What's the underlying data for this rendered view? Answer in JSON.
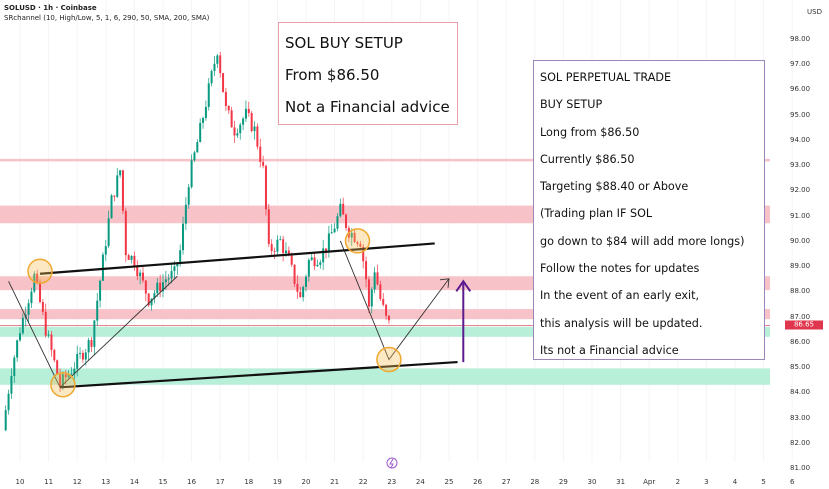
{
  "header": {
    "symbol_line": "SOLUSD · 1h · Coinbase",
    "indicator_line": "SRchannel (10, High/Low, 5, 1, 6, 290, 50, SMA, 200, SMA)"
  },
  "setup_box": {
    "lines": [
      "SOL BUY SETUP",
      "From $86.50",
      "Not a Financial advice"
    ]
  },
  "notes_box": {
    "lines": [
      "SOL PERPETUAL TRADE",
      "BUY SETUP",
      "Long from $86.50",
      "Currently $86.50",
      "Targeting $88.40 or Above",
      "(Trading plan IF SOL",
      "go down to $84 will add more longs)",
      "Follow the notes for updates",
      "In the event of an early exit,",
      "this analysis will be updated.",
      "Its not a Financial advice"
    ]
  },
  "colors": {
    "up": "#089981",
    "down": "#f23645",
    "resistance": "#f7c3c8",
    "support": "#b8efd9",
    "price_tag": "#e0364d",
    "arrow": "#5b1b8f",
    "circle": "#f0a830"
  },
  "icons": {
    "event_marker": "lightning-icon"
  },
  "chart_data": {
    "type": "candlestick",
    "currency_label": "USD",
    "current_price": "86.65",
    "ylim": [
      81,
      98
    ],
    "y_ticks": [
      "98.00",
      "97.00",
      "96.00",
      "95.00",
      "94.00",
      "93.00",
      "92.00",
      "91.00",
      "90.00",
      "89.00",
      "88.00",
      "87.00",
      "86.00",
      "85.00",
      "84.00",
      "83.00",
      "82.00",
      "81.00"
    ],
    "x_ticks": [
      "10",
      "11",
      "12",
      "13",
      "14",
      "15",
      "16",
      "17",
      "18",
      "19",
      "20",
      "21",
      "22",
      "23",
      "24",
      "25",
      "26",
      "27",
      "28",
      "29",
      "30",
      "31",
      "Apr",
      "2",
      "3",
      "4",
      "5",
      "6"
    ],
    "price_path": [
      [
        9.4,
        82.5
      ],
      [
        9.7,
        84.9
      ],
      [
        10.0,
        86.5
      ],
      [
        10.5,
        88.6
      ],
      [
        10.9,
        86.5
      ],
      [
        11.4,
        84.3
      ],
      [
        11.8,
        84.9
      ],
      [
        12.5,
        86.1
      ],
      [
        13.0,
        90.0
      ],
      [
        13.2,
        91.6
      ],
      [
        13.5,
        92.8
      ],
      [
        13.7,
        89.6
      ],
      [
        14.0,
        89.2
      ],
      [
        14.5,
        87.7
      ],
      [
        15.1,
        88.5
      ],
      [
        15.4,
        88.7
      ],
      [
        15.6,
        89.6
      ],
      [
        15.9,
        92.4
      ],
      [
        16.3,
        94.4
      ],
      [
        16.6,
        96.0
      ],
      [
        16.9,
        97.6
      ],
      [
        17.2,
        95.2
      ],
      [
        17.5,
        94.4
      ],
      [
        17.9,
        95.0
      ],
      [
        18.2,
        94.4
      ],
      [
        18.5,
        92.8
      ],
      [
        18.6,
        91.2
      ],
      [
        18.7,
        89.6
      ],
      [
        19.1,
        90.0
      ],
      [
        19.4,
        89.2
      ],
      [
        19.8,
        87.7
      ],
      [
        20.1,
        89.2
      ],
      [
        20.5,
        89.4
      ],
      [
        20.8,
        90.0
      ],
      [
        21.2,
        91.2
      ],
      [
        21.5,
        90.4
      ],
      [
        21.9,
        90.0
      ],
      [
        22.1,
        88.5
      ],
      [
        22.2,
        87.3
      ],
      [
        22.4,
        88.9
      ],
      [
        22.6,
        87.7
      ],
      [
        22.8,
        86.9
      ],
      [
        22.9,
        86.7
      ]
    ],
    "zones": [
      {
        "kind": "resistance",
        "from": 93.15,
        "to": 93.25
      },
      {
        "kind": "resistance",
        "from": 90.7,
        "to": 91.4
      },
      {
        "kind": "resistance",
        "from": 88.05,
        "to": 88.6
      },
      {
        "kind": "resistance",
        "from": 86.9,
        "to": 87.3
      },
      {
        "kind": "support",
        "from": 86.2,
        "to": 86.6
      },
      {
        "kind": "support",
        "from": 84.3,
        "to": 84.95
      }
    ],
    "trendlines": [
      {
        "name": "upper-channel",
        "points": [
          [
            10.7,
            88.7
          ],
          [
            24.5,
            89.9
          ]
        ]
      },
      {
        "name": "lower-channel",
        "points": [
          [
            11.4,
            84.2
          ],
          [
            25.3,
            85.2
          ]
        ]
      }
    ],
    "pivots": [
      [
        10.7,
        88.8
      ],
      [
        11.5,
        84.3
      ],
      [
        21.8,
        90.0
      ],
      [
        22.9,
        85.3
      ]
    ],
    "projection_paths": [
      [
        [
          9.6,
          88.4
        ],
        [
          11.4,
          84.2
        ],
        [
          15.5,
          88.6
        ]
      ],
      [
        [
          21.2,
          90.0
        ],
        [
          22.9,
          85.3
        ],
        [
          25.0,
          88.5
        ]
      ]
    ],
    "arrow": {
      "x": 25.5,
      "from": 85.2,
      "to": 88.4
    }
  }
}
